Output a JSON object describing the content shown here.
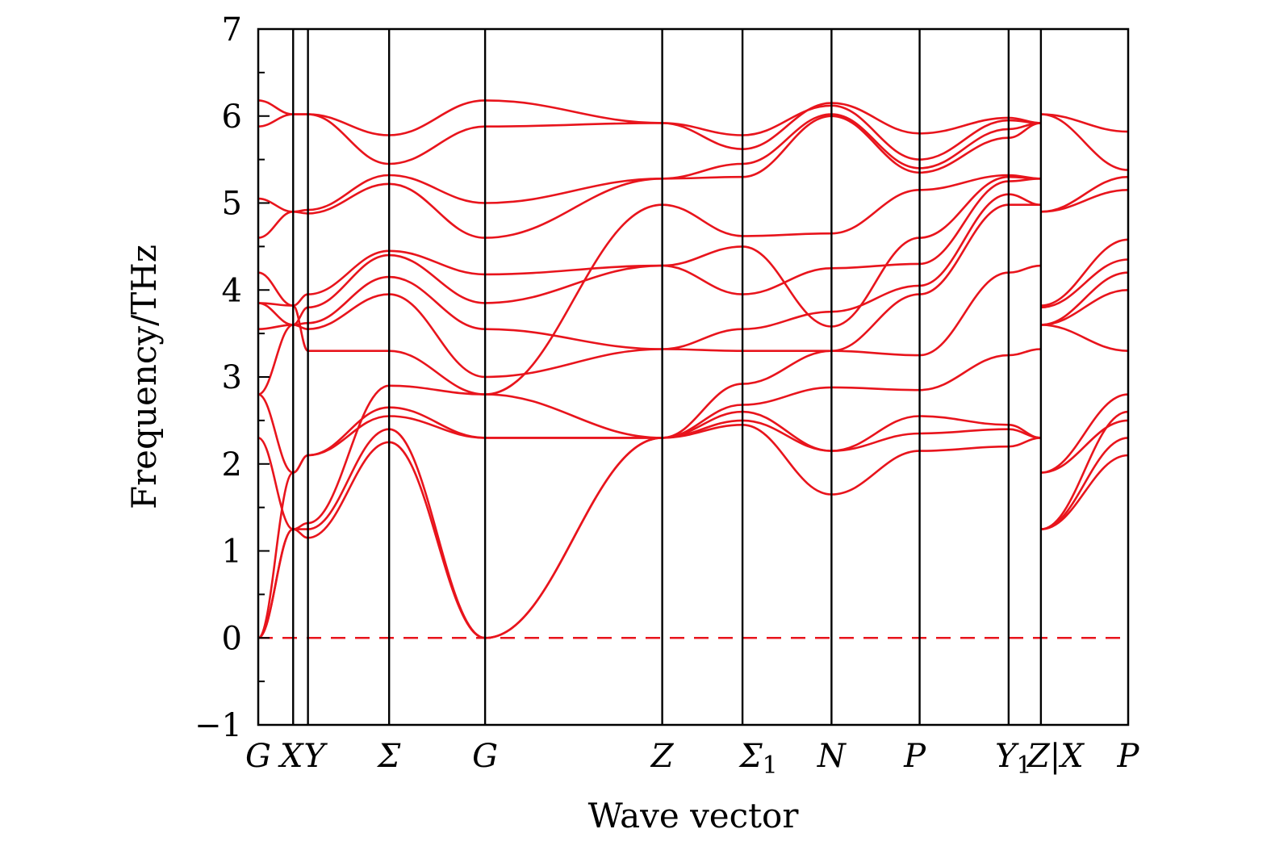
{
  "chart_data": {
    "type": "line",
    "title": "",
    "xlabel": "Wave vector",
    "ylabel": "Frequency/THz",
    "ylim": [
      -1,
      7
    ],
    "yticks": [
      "−1",
      "0",
      "1",
      "2",
      "3",
      "4",
      "5",
      "6",
      "7"
    ],
    "grid": false,
    "legend": "none",
    "line_color": "#e8141c",
    "zero_line_color": "#e8141c",
    "high_symmetry_points": [
      {
        "label": "G",
        "sub": "",
        "k": 0.0
      },
      {
        "label": "X",
        "sub": "",
        "k": 0.4
      },
      {
        "label": "Y",
        "sub": "",
        "k": 0.57
      },
      {
        "label": "Σ",
        "sub": "",
        "k": 1.5
      },
      {
        "label": "G",
        "sub": "",
        "k": 2.6
      },
      {
        "label": "Z",
        "sub": "",
        "k": 4.63
      },
      {
        "label": "Σ",
        "sub": "1",
        "k": 5.55
      },
      {
        "label": "N",
        "sub": "",
        "k": 6.57
      },
      {
        "label": "P",
        "sub": "",
        "k": 7.58
      },
      {
        "label": "Y",
        "sub": "1",
        "k": 8.6
      },
      {
        "label": "Z|X",
        "sub": "",
        "k": 8.97
      },
      {
        "label": "P",
        "sub": "",
        "k": 9.97
      }
    ],
    "tick_label_text": [
      "G",
      "X",
      "Y",
      "Σ",
      "G",
      "Z",
      "Σ",
      "1",
      "N",
      "P",
      "Y",
      "1",
      "Z|X",
      "P"
    ],
    "segments": [
      {
        "from": "G",
        "to": "X",
        "bands": [
          [
            0,
            1.25
          ],
          [
            0,
            1.25
          ],
          [
            0,
            1.9
          ],
          [
            2.3,
            1.25
          ],
          [
            2.8,
            1.9
          ],
          [
            2.8,
            3.6
          ],
          [
            3.55,
            3.6
          ],
          [
            3.85,
            3.6
          ],
          [
            3.85,
            3.82
          ],
          [
            4.2,
            3.82
          ],
          [
            4.6,
            4.9
          ],
          [
            5.05,
            4.9
          ],
          [
            5.88,
            6.02
          ],
          [
            6.18,
            6.02
          ]
        ]
      },
      {
        "from": "X",
        "to": "Y",
        "bands": [
          [
            1.25,
            1.15
          ],
          [
            1.25,
            1.25
          ],
          [
            1.9,
            2.1
          ],
          [
            1.25,
            1.32
          ],
          [
            1.9,
            2.1
          ],
          [
            3.6,
            3.55
          ],
          [
            3.6,
            3.62
          ],
          [
            3.6,
            3.8
          ],
          [
            3.82,
            3.95
          ],
          [
            3.82,
            3.3
          ],
          [
            4.9,
            4.88
          ],
          [
            4.9,
            4.92
          ],
          [
            6.02,
            6.02
          ],
          [
            6.02,
            6.02
          ]
        ]
      },
      {
        "from": "Y",
        "to": "Σ",
        "bands": [
          [
            1.15,
            2.25
          ],
          [
            1.25,
            2.4
          ],
          [
            2.1,
            2.55
          ],
          [
            1.32,
            2.9
          ],
          [
            2.1,
            2.65
          ],
          [
            3.55,
            3.95
          ],
          [
            3.62,
            4.15
          ],
          [
            3.8,
            4.4
          ],
          [
            3.95,
            4.45
          ],
          [
            3.3,
            3.3
          ],
          [
            4.88,
            5.22
          ],
          [
            4.92,
            5.32
          ],
          [
            6.02,
            5.78
          ],
          [
            6.02,
            5.45
          ]
        ]
      },
      {
        "from": "Σ",
        "to": "G",
        "bands": [
          [
            2.25,
            0
          ],
          [
            2.4,
            0
          ],
          [
            2.55,
            2.3
          ],
          [
            2.9,
            2.8
          ],
          [
            2.65,
            2.3
          ],
          [
            3.95,
            3.0
          ],
          [
            4.15,
            3.55
          ],
          [
            4.4,
            3.85
          ],
          [
            4.45,
            4.18
          ],
          [
            3.3,
            2.8
          ],
          [
            5.22,
            4.6
          ],
          [
            5.32,
            5.0
          ],
          [
            5.78,
            6.18
          ],
          [
            5.45,
            5.88
          ]
        ]
      },
      {
        "from": "G",
        "to": "Z",
        "bands": [
          [
            0,
            2.3
          ],
          [
            0,
            2.3
          ],
          [
            2.3,
            2.3
          ],
          [
            2.8,
            2.3
          ],
          [
            2.3,
            2.3
          ],
          [
            3.0,
            3.32
          ],
          [
            3.55,
            3.32
          ],
          [
            3.85,
            4.28
          ],
          [
            4.18,
            4.28
          ],
          [
            2.8,
            4.98
          ],
          [
            4.6,
            5.28
          ],
          [
            5.0,
            5.28
          ],
          [
            6.18,
            5.92
          ],
          [
            5.88,
            5.92
          ]
        ]
      },
      {
        "from": "Z",
        "to": "Σ1",
        "bands": [
          [
            2.3,
            2.45
          ],
          [
            2.3,
            2.6
          ],
          [
            2.3,
            2.5
          ],
          [
            2.3,
            2.68
          ],
          [
            2.3,
            2.92
          ],
          [
            3.32,
            3.3
          ],
          [
            3.32,
            3.55
          ],
          [
            4.28,
            3.95
          ],
          [
            4.28,
            4.5
          ],
          [
            4.98,
            4.62
          ],
          [
            5.28,
            5.3
          ],
          [
            5.28,
            5.45
          ],
          [
            5.92,
            5.78
          ],
          [
            5.92,
            5.62
          ]
        ]
      },
      {
        "from": "Σ1",
        "to": "N",
        "bands": [
          [
            2.45,
            1.65
          ],
          [
            2.6,
            2.15
          ],
          [
            2.5,
            2.15
          ],
          [
            2.68,
            2.88
          ],
          [
            2.92,
            3.3
          ],
          [
            3.3,
            3.3
          ],
          [
            3.55,
            3.75
          ],
          [
            3.95,
            4.25
          ],
          [
            4.5,
            3.58
          ],
          [
            4.62,
            4.65
          ],
          [
            5.3,
            6.0
          ],
          [
            5.45,
            6.02
          ],
          [
            5.78,
            6.12
          ],
          [
            5.62,
            6.15
          ]
        ]
      },
      {
        "from": "N",
        "to": "P",
        "bands": [
          [
            1.65,
            2.15
          ],
          [
            2.15,
            2.35
          ],
          [
            2.15,
            2.55
          ],
          [
            2.88,
            2.85
          ],
          [
            3.3,
            3.25
          ],
          [
            3.3,
            3.95
          ],
          [
            3.75,
            4.05
          ],
          [
            4.25,
            4.3
          ],
          [
            3.58,
            4.6
          ],
          [
            4.65,
            5.15
          ],
          [
            6.0,
            5.35
          ],
          [
            6.02,
            5.4
          ],
          [
            6.12,
            5.5
          ],
          [
            6.15,
            5.8
          ]
        ]
      },
      {
        "from": "P",
        "to": "Y1",
        "bands": [
          [
            2.15,
            2.2
          ],
          [
            2.35,
            2.4
          ],
          [
            2.55,
            2.45
          ],
          [
            2.85,
            3.25
          ],
          [
            3.25,
            4.2
          ],
          [
            3.95,
            4.98
          ],
          [
            4.05,
            5.1
          ],
          [
            4.3,
            5.25
          ],
          [
            4.6,
            5.3
          ],
          [
            5.15,
            5.32
          ],
          [
            5.35,
            5.75
          ],
          [
            5.4,
            5.85
          ],
          [
            5.5,
            5.95
          ],
          [
            5.8,
            5.98
          ]
        ]
      },
      {
        "from": "Y1",
        "to": "Z|X",
        "bands": [
          [
            2.2,
            2.3
          ],
          [
            2.4,
            2.3
          ],
          [
            2.45,
            2.3
          ],
          [
            3.25,
            3.32
          ],
          [
            4.2,
            4.28
          ],
          [
            4.98,
            4.98
          ],
          [
            5.1,
            4.98
          ],
          [
            5.25,
            5.28
          ],
          [
            5.3,
            5.28
          ],
          [
            5.32,
            5.28
          ],
          [
            5.75,
            5.92
          ],
          [
            5.85,
            5.92
          ],
          [
            5.95,
            5.92
          ],
          [
            5.98,
            5.92
          ]
        ]
      },
      {
        "from": "X",
        "to": "P",
        "bands": [
          [
            1.25,
            2.1
          ],
          [
            1.25,
            2.3
          ],
          [
            1.9,
            2.5
          ],
          [
            1.25,
            2.6
          ],
          [
            1.9,
            2.8
          ],
          [
            3.6,
            3.3
          ],
          [
            3.6,
            4.0
          ],
          [
            3.6,
            4.2
          ],
          [
            3.8,
            4.35
          ],
          [
            3.82,
            4.58
          ],
          [
            4.9,
            5.15
          ],
          [
            4.9,
            5.3
          ],
          [
            6.02,
            5.38
          ],
          [
            6.02,
            5.82
          ]
        ]
      }
    ]
  }
}
